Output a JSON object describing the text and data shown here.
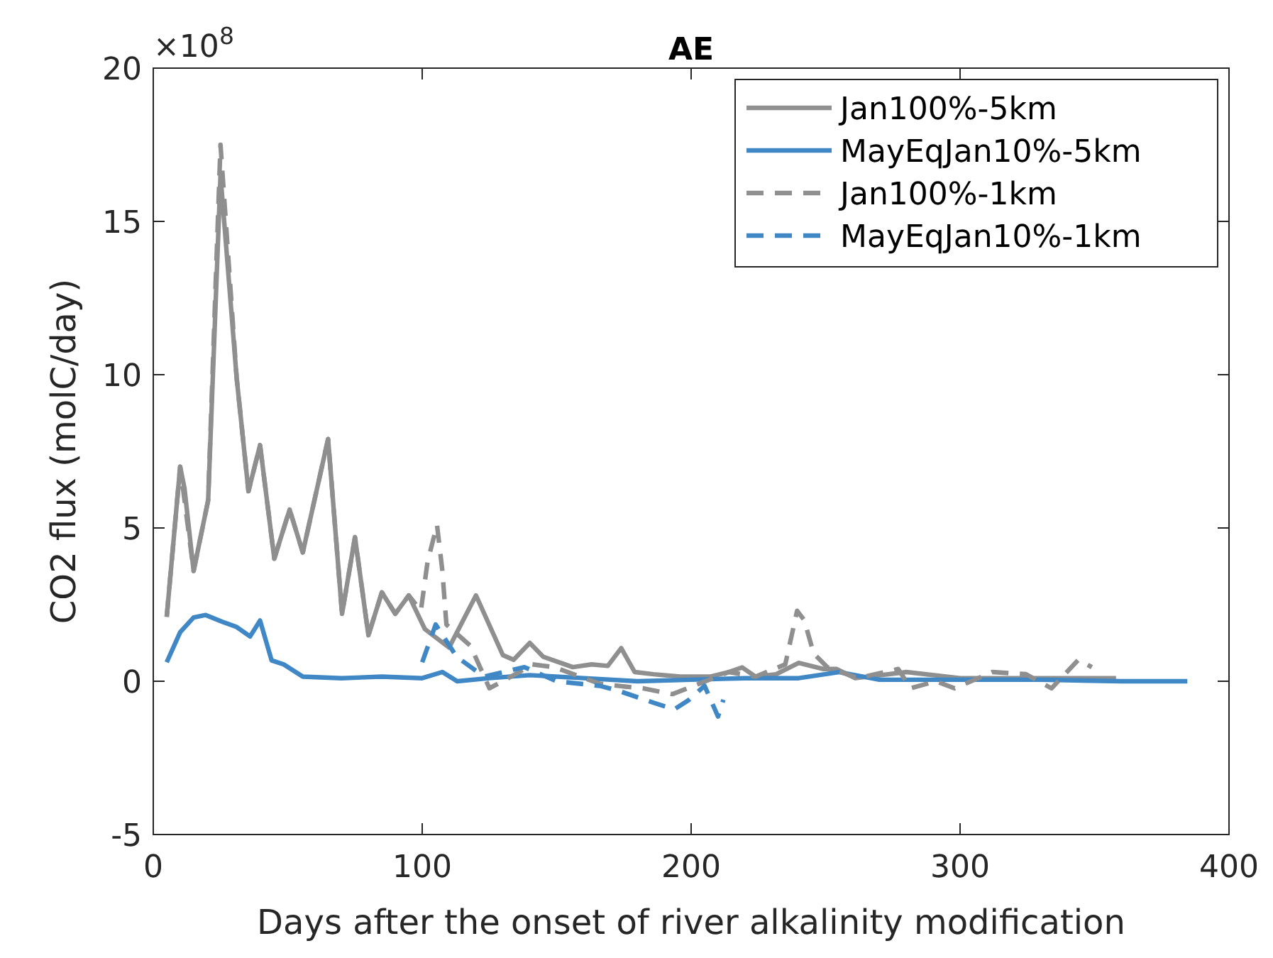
{
  "chart_data": {
    "type": "line",
    "title": "AE",
    "xlabel": "Days after the onset of river alkalinity modification",
    "ylabel": "CO2 flux (molC/day)",
    "annotations": [
      "×10$^{8}$"
    ],
    "xlim": [
      0,
      400
    ],
    "xticks": [
      0,
      100,
      200,
      300,
      400
    ],
    "ylim": [
      -5,
      20
    ],
    "yticks": [
      -5,
      0,
      5,
      10,
      15,
      20
    ],
    "grid": false,
    "legend": "top right",
    "series": [
      {
        "name": "Jan100%-5km",
        "color": "#8f8f8f",
        "line_style": "solid",
        "x": [
          5,
          10,
          11.6,
          15,
          20.4,
          25,
          31,
          35.4,
          39.7,
          45,
          50.7,
          55.6,
          65,
          70.2,
          75,
          80,
          85,
          90,
          95,
          101,
          104,
          110,
          120,
          130,
          134,
          140,
          145,
          156,
          163,
          169,
          174,
          179,
          186,
          196,
          207,
          214,
          219,
          224,
          231.6,
          240,
          249,
          254,
          261,
          280,
          300,
          320,
          340,
          358
        ],
        "values": [
          2.1,
          7.0,
          6.3,
          3.6,
          5.9,
          16.5,
          9.9,
          6.2,
          7.7,
          4.0,
          5.6,
          4.2,
          7.9,
          2.2,
          4.7,
          1.5,
          2.9,
          2.2,
          2.8,
          1.7,
          1.5,
          1.1,
          2.8,
          0.85,
          0.7,
          1.25,
          0.8,
          0.46,
          0.55,
          0.5,
          1.08,
          0.3,
          0.23,
          0.15,
          0.15,
          0.3,
          0.45,
          0.15,
          0.23,
          0.6,
          0.4,
          0.4,
          0.1,
          0.3,
          0.1,
          0.1,
          0.1,
          0.1
        ]
      },
      {
        "name": "MayEqJan10%-5km",
        "color": "#3f88c5",
        "line_style": "solid",
        "x": [
          5,
          10,
          15,
          19.5,
          25.7,
          31,
          36,
          39.7,
          44,
          48.5,
          55.6,
          70,
          85,
          100,
          107.5,
          113,
          125,
          140,
          160,
          180,
          200,
          220,
          240,
          255,
          270,
          300,
          330,
          360,
          384.5
        ],
        "values": [
          0.62,
          1.6,
          2.08,
          2.16,
          1.94,
          1.77,
          1.46,
          1.98,
          0.68,
          0.55,
          0.15,
          0.1,
          0.15,
          0.1,
          0.3,
          0.0,
          0.1,
          0.2,
          0.1,
          0.0,
          0.05,
          0.1,
          0.1,
          0.3,
          0.05,
          0.05,
          0.05,
          0.0,
          0.0
        ]
      },
      {
        "name": "Jan100%-1km",
        "color": "#8f8f8f",
        "line_style": "dashed",
        "x": [
          5,
          10,
          15,
          20.4,
          25,
          31,
          35.4,
          39.7,
          45,
          50.7,
          55.6,
          65,
          70.2,
          75,
          80,
          85,
          90,
          95,
          99.5,
          102,
          105.5,
          107.5,
          109,
          118,
          125,
          133,
          141,
          149,
          166,
          176,
          182,
          193,
          203,
          214,
          224,
          235,
          239.4,
          242,
          245.6,
          250.6,
          262,
          277,
          281.6,
          291,
          298,
          312,
          324.5,
          334,
          344,
          349
        ],
        "values": [
          2.1,
          7.0,
          3.6,
          5.9,
          17.5,
          9.9,
          6.2,
          7.7,
          4.0,
          5.6,
          4.2,
          7.9,
          2.2,
          4.7,
          1.5,
          2.9,
          2.2,
          2.8,
          2.3,
          3.9,
          5.1,
          3.6,
          1.85,
          1.15,
          -0.23,
          0.15,
          0.55,
          0.46,
          -0.08,
          -0.18,
          -0.23,
          -0.42,
          -0.08,
          0.3,
          0.15,
          0.55,
          2.3,
          2.0,
          0.9,
          0.46,
          0.1,
          0.4,
          -0.23,
          0.0,
          -0.23,
          0.3,
          0.23,
          -0.23,
          0.7,
          0.46
        ]
      },
      {
        "name": "MayEqJan10%-1km",
        "color": "#3f88c5",
        "line_style": "dashed",
        "x": [
          100,
          105,
          112.8,
          123,
          138,
          150,
          166,
          172.6,
          186,
          193.7,
          199,
          205,
          210,
          212
        ],
        "values": [
          0.62,
          1.85,
          0.8,
          0.15,
          0.46,
          0.0,
          -0.15,
          -0.3,
          -0.7,
          -0.92,
          -0.62,
          -0.15,
          -1.15,
          -0.6
        ]
      }
    ]
  }
}
